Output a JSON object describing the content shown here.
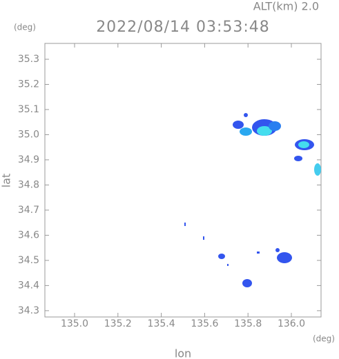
{
  "chart_data": {
    "type": "scatter",
    "title": "2022/08/14 03:53:48",
    "subtitle": "ALT(km) 2.0",
    "x_label": "lon",
    "y_label": "lat",
    "x_unit": "(deg)",
    "y_unit": "(deg)",
    "xlim": [
      134.863,
      136.137
    ],
    "ylim": [
      34.275,
      35.363
    ],
    "xticks": [
      {
        "value": 135,
        "label": "135.0"
      },
      135.2,
      135.4,
      135.6,
      135.8,
      {
        "value": 136,
        "label": "136.0"
      }
    ],
    "yticks": [
      34.3,
      34.4,
      34.5,
      34.6,
      34.7,
      34.8,
      34.9,
      {
        "value": 35,
        "label": "35.0"
      },
      35.1,
      35.2,
      35.3
    ]
  }
}
